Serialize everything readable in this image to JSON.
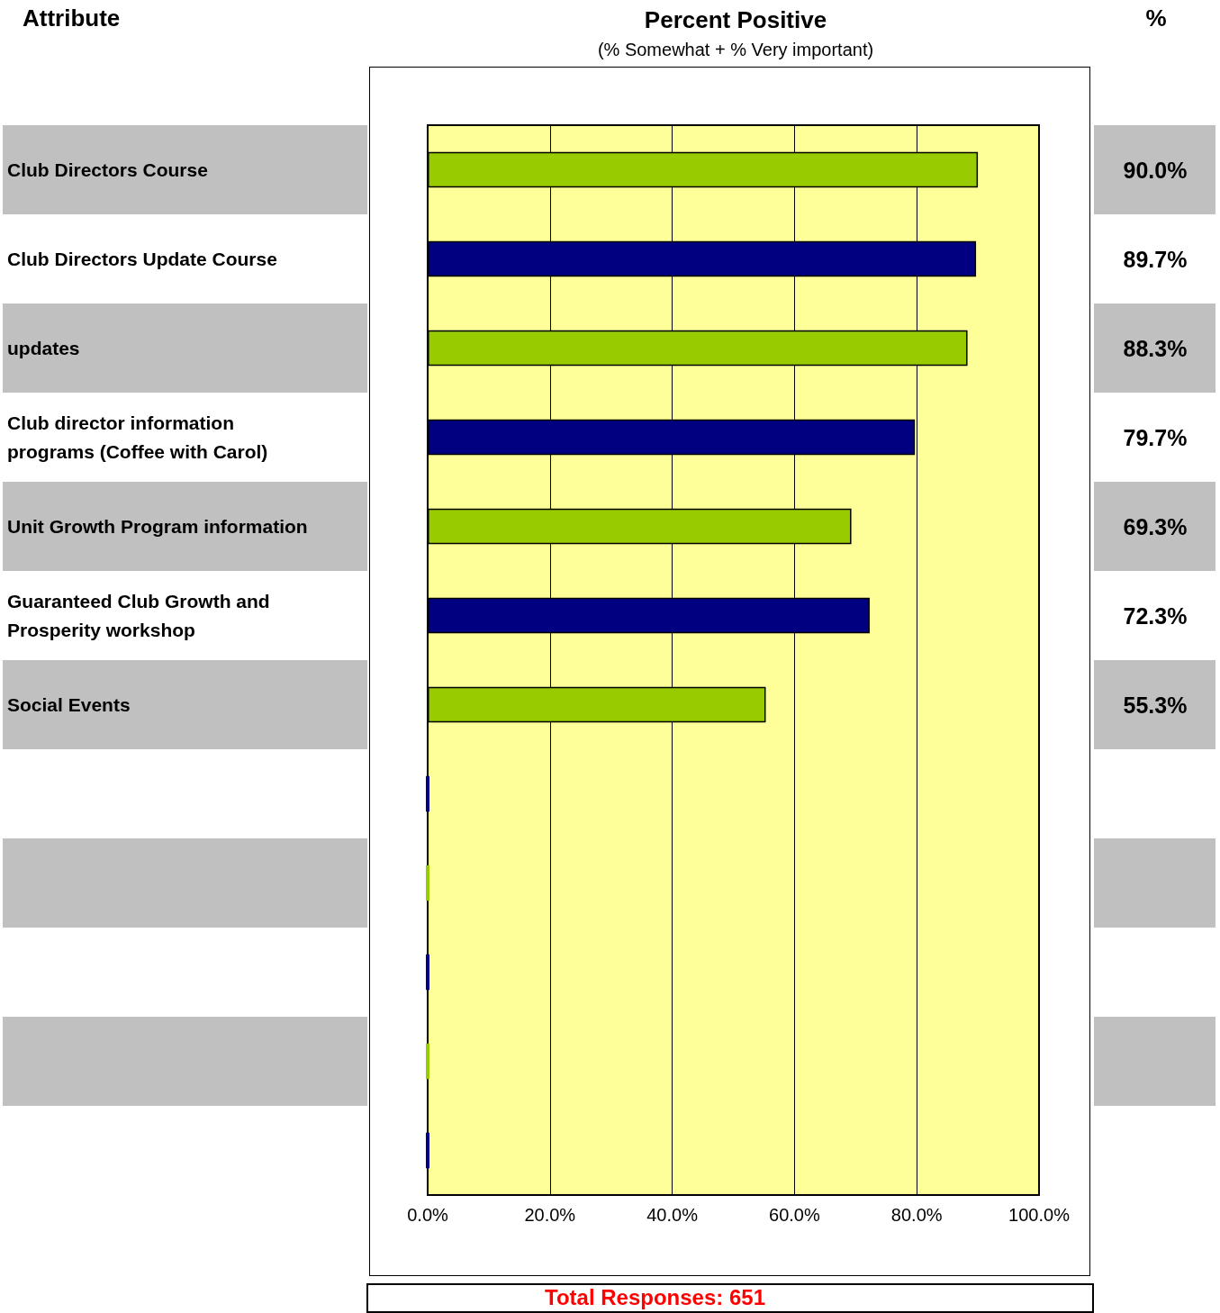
{
  "chart_data": {
    "type": "bar",
    "orientation": "horizontal",
    "title": "Percent Positive",
    "subtitle": "(% Somewhat + % Very important)",
    "ylabel": "Attribute",
    "annotations": [
      "%",
      "Total Responses:  651"
    ],
    "categories": [
      "Club Directors Course",
      "Club Directors Update Course",
      "updates",
      "Club director information\nprograms (Coffee with Carol)",
      "Unit Growth Program information",
      "Guaranteed Club Growth and\nProsperity workshop",
      "Social Events",
      null,
      null,
      null,
      null,
      null
    ],
    "values": [
      90.0,
      89.7,
      88.3,
      79.7,
      69.3,
      72.3,
      55.3,
      0,
      0,
      0,
      0,
      0
    ],
    "colors": [
      "#99cc00",
      "#000080",
      "#99cc00",
      "#000080",
      "#99cc00",
      "#000080",
      "#99cc00",
      "#000080",
      "#99cc00",
      "#000080",
      "#99cc00",
      "#000080"
    ],
    "value_labels": [
      "90.0%",
      "89.7%",
      "88.3%",
      "79.7%",
      "69.3%",
      "72.3%",
      "55.3%",
      null,
      null,
      null,
      null,
      null
    ],
    "xlim": [
      0,
      100
    ],
    "xticks": [
      {
        "value": 0,
        "label": "0.0%"
      },
      {
        "value": 20,
        "label": "20.0%"
      },
      {
        "value": 40,
        "label": "40.0%"
      },
      {
        "value": 60,
        "label": "60.0%"
      },
      {
        "value": 80,
        "label": "80.0%"
      },
      {
        "value": 100,
        "label": "100.0%"
      }
    ],
    "grid": "x"
  }
}
